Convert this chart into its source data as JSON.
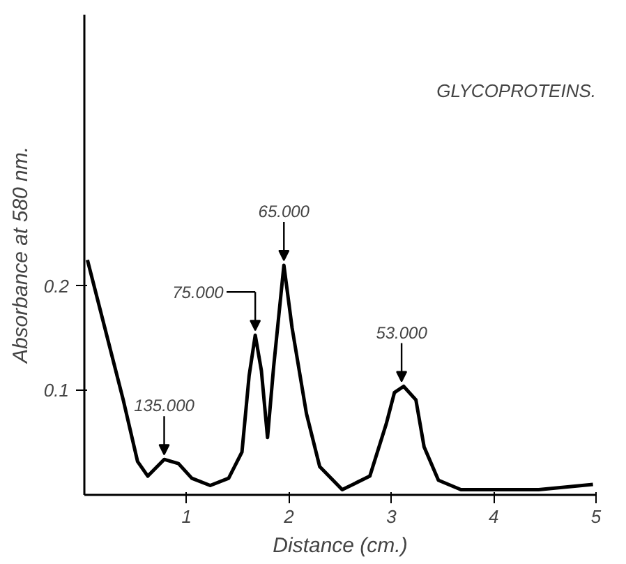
{
  "chart_data": {
    "type": "line",
    "xlabel": "Distance (cm.)",
    "ylabel": "Absorbance at 580 nm.",
    "annotations": [
      "GLYCOPROTEINS.",
      {
        "text": "135.000",
        "x": 0.78,
        "y": 0.034
      },
      {
        "text": "75.000",
        "x": 1.67,
        "y": 0.153
      },
      {
        "text": "65.000",
        "x": 1.95,
        "y": 0.22
      },
      {
        "text": "53.000",
        "x": 3.1,
        "y": 0.104
      }
    ],
    "x": [
      0.03,
      0.2,
      0.38,
      0.52,
      0.62,
      0.78,
      0.92,
      1.05,
      1.23,
      1.41,
      1.54,
      1.61,
      1.67,
      1.73,
      1.79,
      1.85,
      1.95,
      2.03,
      2.17,
      2.3,
      2.52,
      2.79,
      2.95,
      3.03,
      3.12,
      3.24,
      3.32,
      3.46,
      3.68,
      4.44,
      4.97
    ],
    "series": [
      {
        "color": "#000000",
        "values": [
          0.225,
          0.16,
          0.091,
          0.032,
          0.018,
          0.034,
          0.03,
          0.016,
          0.009,
          0.016,
          0.041,
          0.114,
          0.153,
          0.119,
          0.055,
          0.123,
          0.22,
          0.16,
          0.078,
          0.027,
          0.005,
          0.018,
          0.068,
          0.098,
          0.104,
          0.091,
          0.046,
          0.014,
          0.005,
          0.005,
          0.01
        ]
      }
    ],
    "xlim": [
      0,
      5
    ],
    "ylim": [
      0,
      0.46
    ],
    "xticks": [
      1,
      2,
      3,
      4,
      5
    ],
    "yticks": [
      0.1,
      0.2
    ],
    "grid": false,
    "marker": "none",
    "line_style": "solid"
  }
}
